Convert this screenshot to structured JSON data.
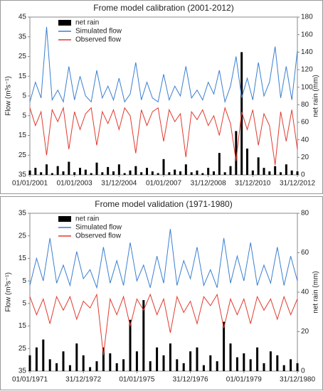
{
  "chart_data": [
    {
      "type": "line",
      "title": "Frome model calibration (2001-2012)",
      "y_label": "Flow (m³s⁻¹)",
      "y2_label": "net rain (mm)",
      "x": [
        2001,
        2001.25,
        2001.5,
        2001.75,
        2002,
        2002.25,
        2002.5,
        2002.75,
        2003,
        2003.25,
        2003.5,
        2003.75,
        2004,
        2004.25,
        2004.5,
        2004.75,
        2005,
        2005.25,
        2005.5,
        2005.75,
        2006,
        2006.25,
        2006.5,
        2006.75,
        2007,
        2007.25,
        2007.5,
        2007.75,
        2008,
        2008.25,
        2008.5,
        2008.75,
        2009,
        2009.25,
        2009.5,
        2009.75,
        2010,
        2010.25,
        2010.5,
        2010.75,
        2011,
        2011.25,
        2011.5,
        2011.75,
        2012,
        2012.25,
        2012.5,
        2012.75,
        2013
      ],
      "series": [
        {
          "name": "net rain",
          "type": "bar",
          "axis": "y2",
          "color": "#000000",
          "values": [
            5,
            8,
            3,
            12,
            2,
            10,
            4,
            15,
            3,
            8,
            6,
            2,
            14,
            3,
            9,
            4,
            12,
            2,
            5,
            10,
            3,
            8,
            4,
            2,
            18,
            3,
            6,
            4,
            12,
            3,
            5,
            2,
            8,
            4,
            25,
            3,
            10,
            50,
            140,
            30,
            5,
            20,
            8,
            4,
            10,
            3,
            12,
            5,
            4
          ]
        },
        {
          "name": "Simulated flow",
          "type": "line",
          "color": "#3a7fd0",
          "values": [
            2,
            12,
            4,
            40,
            3,
            8,
            2,
            20,
            3,
            15,
            5,
            2,
            18,
            4,
            10,
            3,
            14,
            2,
            6,
            22,
            3,
            12,
            4,
            2,
            16,
            3,
            10,
            5,
            20,
            4,
            8,
            3,
            12,
            6,
            18,
            2,
            10,
            25,
            4,
            14,
            3,
            22,
            5,
            12,
            30,
            4,
            20,
            3,
            28
          ]
        },
        {
          "name": "Observed flow",
          "type": "line",
          "color": "#e03a2e",
          "values": [
            -1,
            -10,
            -3,
            -25,
            -2,
            -8,
            -1,
            -22,
            -3,
            -12,
            -4,
            -1,
            -20,
            -3,
            -9,
            -2,
            -12,
            -1,
            -5,
            -24,
            -2,
            -10,
            -3,
            -1,
            -18,
            -2,
            -8,
            -4,
            -26,
            -3,
            -7,
            -2,
            -10,
            -5,
            -15,
            -1,
            -9,
            -28,
            -3,
            -12,
            -2,
            -20,
            -4,
            -10,
            -30,
            -3,
            -18,
            -2,
            -22
          ]
        }
      ],
      "xlim": [
        2001,
        2013
      ],
      "xticks": [
        {
          "value": 2001,
          "label": "01/01/2001"
        },
        {
          "value": 2003,
          "label": "01/01/2003"
        },
        {
          "value": 2005,
          "label": "31/12/2004"
        },
        {
          "value": 2007,
          "label": "01/01/2007"
        },
        {
          "value": 2009,
          "label": "31/12/2008"
        },
        {
          "value": 2011,
          "label": "31/12/2010"
        },
        {
          "value": 2013,
          "label": "31/12/2012"
        }
      ],
      "ylim": [
        -35,
        45
      ],
      "yticks": [
        45,
        35,
        25,
        15,
        5,
        {
          "value": -5,
          "label": "5"
        },
        {
          "value": -15,
          "label": "15"
        },
        {
          "value": -25,
          "label": "25"
        },
        {
          "value": -35,
          "label": "35"
        }
      ],
      "y2lim": [
        0,
        180
      ],
      "y2ticks": [
        0,
        20,
        40,
        60,
        80,
        100,
        120,
        140,
        160,
        180
      ],
      "legend": "upper left"
    },
    {
      "type": "line",
      "title": "Frome model validation (1971-1980)",
      "y_label": "Flow (m³s⁻¹)",
      "y2_label": "net rain (mm)",
      "x": [
        1971,
        1971.25,
        1971.5,
        1971.75,
        1972,
        1972.25,
        1972.5,
        1972.75,
        1973,
        1973.25,
        1973.5,
        1973.75,
        1974,
        1974.25,
        1974.5,
        1974.75,
        1975,
        1975.25,
        1975.5,
        1975.75,
        1976,
        1976.25,
        1976.5,
        1976.75,
        1977,
        1977.25,
        1977.5,
        1977.75,
        1978,
        1978.25,
        1978.5,
        1978.75,
        1979,
        1979.25,
        1979.5,
        1979.75,
        1980,
        1980.25,
        1980.5,
        1980.75,
        1981
      ],
      "series": [
        {
          "name": "net rain",
          "type": "bar",
          "axis": "y2",
          "color": "#000000",
          "values": [
            8,
            12,
            16,
            6,
            4,
            10,
            3,
            14,
            8,
            2,
            5,
            12,
            9,
            4,
            6,
            26,
            10,
            36,
            5,
            12,
            8,
            14,
            6,
            4,
            10,
            12,
            3,
            8,
            5,
            25,
            14,
            7,
            9,
            6,
            12,
            4,
            10,
            8,
            3,
            6,
            4
          ]
        },
        {
          "name": "Simulated flow",
          "type": "line",
          "color": "#3a7fd0",
          "values": [
            3,
            15,
            5,
            24,
            4,
            12,
            3,
            18,
            6,
            10,
            2,
            20,
            4,
            14,
            3,
            22,
            5,
            12,
            2,
            16,
            4,
            28,
            3,
            14,
            6,
            20,
            3,
            10,
            2,
            24,
            4,
            16,
            5,
            22,
            3,
            12,
            4,
            20,
            3,
            16,
            5
          ]
        },
        {
          "name": "Observed flow",
          "type": "line",
          "color": "#e03a2e",
          "values": [
            -2,
            -10,
            -3,
            -14,
            -2,
            -8,
            -2,
            -12,
            -4,
            -7,
            -1,
            -28,
            -3,
            -10,
            -2,
            -15,
            -3,
            -8,
            -1,
            -10,
            -3,
            -18,
            -2,
            -9,
            -4,
            -14,
            -2,
            -6,
            -1,
            -16,
            -3,
            -10,
            -3,
            -14,
            -2,
            -8,
            -3,
            -12,
            -2,
            -10,
            -3
          ]
        }
      ],
      "xlim": [
        1971,
        1981
      ],
      "xticks": [
        {
          "value": 1971,
          "label": "01/01/1971"
        },
        {
          "value": 1973,
          "label": "31/12/1972"
        },
        {
          "value": 1975,
          "label": "01/01/1975"
        },
        {
          "value": 1977,
          "label": "31/12/1976"
        },
        {
          "value": 1979,
          "label": "01/01/1979"
        },
        {
          "value": 1981,
          "label": "31/12/1980"
        }
      ],
      "ylim": [
        -35,
        35
      ],
      "yticks": [
        35,
        25,
        15,
        5,
        {
          "value": -5,
          "label": "5"
        },
        {
          "value": -15,
          "label": "15"
        },
        {
          "value": -25,
          "label": "25"
        },
        {
          "value": -35,
          "label": "35"
        }
      ],
      "y2lim": [
        0,
        80
      ],
      "y2ticks": [
        0,
        20,
        40,
        60,
        80
      ],
      "legend": "upper left"
    }
  ]
}
